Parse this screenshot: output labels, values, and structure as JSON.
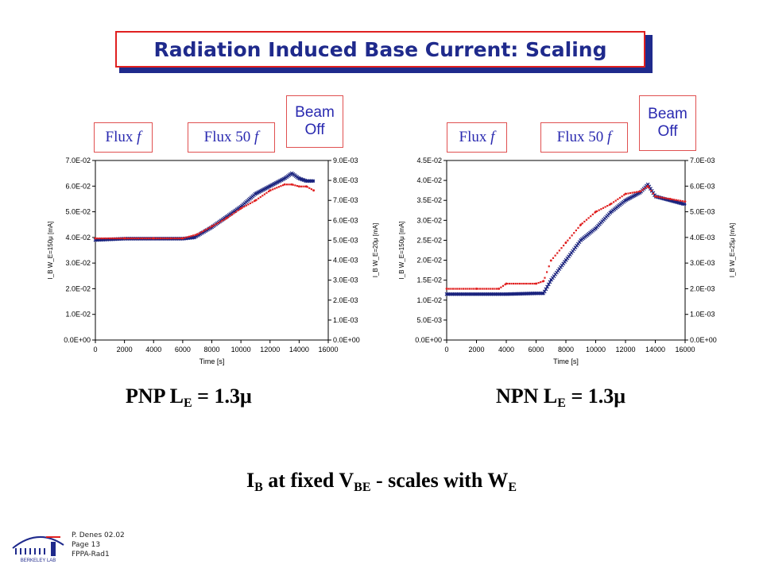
{
  "slide": {
    "title": "Radiation Induced Base Current: Scaling",
    "footer": [
      "P. Denes 02.02",
      "Page 13",
      "FPPA-Rad1"
    ],
    "caption_left": {
      "prefix": "PNP L",
      "sub": "E",
      "suffix": " = 1.3μ"
    },
    "caption_right": {
      "prefix": "NPN L",
      "sub": "E",
      "suffix": " = 1.3μ"
    },
    "bottom": {
      "p1": "I",
      "s1": "B",
      "p2": " at fixed V",
      "s2": "BE",
      "p3": " - scales with W",
      "s3": "E"
    },
    "logo_text": "BERKELEY LAB"
  },
  "tags": {
    "flux_f": "Flux ",
    "flux_f_italic": "f",
    "flux_50f": "Flux 50 ",
    "flux_50f_italic": "f",
    "beam_off_line1": "Beam",
    "beam_off_line2": "Off"
  },
  "colors": {
    "title": "#1f2a8c",
    "frame": "#e02020",
    "blue_series": "#1a237e",
    "red_series": "#e02020"
  },
  "chart_data": [
    {
      "type": "scatter",
      "name": "PNP",
      "xlabel": "Time [s]",
      "ylabel_left": "I_B W_E=150μ [mA]",
      "ylabel_right": "I_B W_E=20μ [mA]",
      "xlim": [
        0,
        16000
      ],
      "xticks": [
        "0",
        "2000",
        "4000",
        "6000",
        "8000",
        "10000",
        "12000",
        "14000",
        "16000"
      ],
      "ylim_left": [
        0,
        0.07
      ],
      "yticks_left": [
        "0.0E+00",
        "1.0E-02",
        "2.0E-02",
        "3.0E-02",
        "4.0E-02",
        "5.0E-02",
        "6.0E-02",
        "7.0E-02"
      ],
      "ylim_right": [
        0,
        0.009
      ],
      "yticks_right": [
        "0.0E+00",
        "1.0E-03",
        "2.0E-03",
        "3.0E-03",
        "4.0E-03",
        "5.0E-03",
        "6.0E-03",
        "7.0E-03",
        "8.0E-03",
        "9.0E-03"
      ],
      "series": [
        {
          "axis": "left",
          "color": "#1a237e",
          "x": [
            0,
            2000,
            4000,
            6000,
            6800,
            8000,
            9000,
            10000,
            11000,
            12000,
            13000,
            13500,
            14000,
            14500,
            15000
          ],
          "y": [
            0.039,
            0.0395,
            0.0395,
            0.0395,
            0.04,
            0.044,
            0.048,
            0.052,
            0.057,
            0.06,
            0.063,
            0.065,
            0.063,
            0.062,
            0.062
          ]
        },
        {
          "axis": "right",
          "color": "#e02020",
          "x": [
            0,
            2000,
            4000,
            6000,
            7000,
            8000,
            9000,
            10000,
            11000,
            12000,
            13000,
            13500,
            14000,
            14500,
            15000
          ],
          "y": [
            0.0051,
            0.0051,
            0.0051,
            0.0051,
            0.0053,
            0.0057,
            0.0061,
            0.0066,
            0.007,
            0.0075,
            0.0078,
            0.0078,
            0.0077,
            0.0077,
            0.0075
          ]
        }
      ]
    },
    {
      "type": "scatter",
      "name": "NPN",
      "xlabel": "Time [s]",
      "ylabel_left": "I_B W_E=150μ [mA]",
      "ylabel_right": "I_B W_E=25μ [mA]",
      "xlim": [
        0,
        16000
      ],
      "xticks": [
        "0",
        "2000",
        "4000",
        "6000",
        "8000",
        "10000",
        "12000",
        "14000",
        "16000"
      ],
      "ylim_left": [
        0,
        0.045
      ],
      "yticks_left": [
        "0.0E+00",
        "5.0E-03",
        "1.0E-02",
        "1.5E-02",
        "2.0E-02",
        "2.5E-02",
        "3.0E-02",
        "3.5E-02",
        "4.0E-02",
        "4.5E-02"
      ],
      "ylim_right": [
        0,
        0.007
      ],
      "yticks_right": [
        "0.0E+00",
        "1.0E-03",
        "2.0E-03",
        "3.0E-03",
        "4.0E-03",
        "5.0E-03",
        "6.0E-03",
        "7.0E-03"
      ],
      "series": [
        {
          "axis": "left",
          "color": "#1a237e",
          "x": [
            0,
            2000,
            4000,
            6000,
            6500,
            7000,
            8000,
            9000,
            10000,
            11000,
            12000,
            13000,
            13500,
            14000,
            15000,
            16000
          ],
          "y": [
            0.0115,
            0.0115,
            0.0115,
            0.0117,
            0.0117,
            0.015,
            0.02,
            0.025,
            0.028,
            0.032,
            0.035,
            0.037,
            0.039,
            0.036,
            0.035,
            0.034
          ]
        },
        {
          "axis": "right",
          "color": "#e02020",
          "x": [
            0,
            2000,
            3500,
            4000,
            6000,
            6500,
            7000,
            8000,
            9000,
            10000,
            11000,
            12000,
            13000,
            13500,
            14000,
            15000,
            16000
          ],
          "y": [
            0.002,
            0.002,
            0.002,
            0.0022,
            0.0022,
            0.0023,
            0.0031,
            0.0038,
            0.0045,
            0.005,
            0.0053,
            0.0057,
            0.0058,
            0.006,
            0.0056,
            0.0055,
            0.0054
          ]
        }
      ]
    }
  ]
}
